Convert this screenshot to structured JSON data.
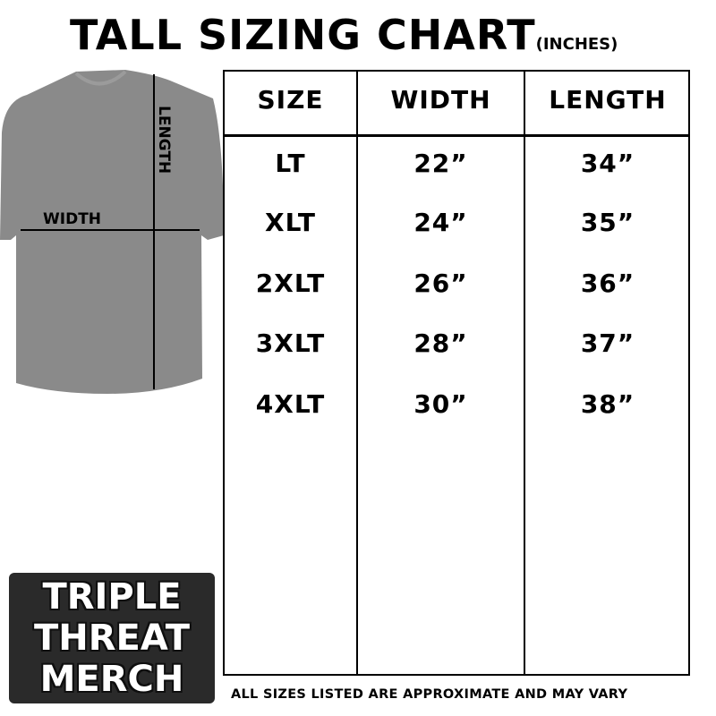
{
  "title": "TALL SIZING CHART",
  "title_unit": "(INCHES)",
  "diagram": {
    "length_label": "LENGTH",
    "width_label": "WIDTH",
    "shirt_color": "#8a8a8a"
  },
  "table": {
    "headers": [
      "SIZE",
      "WIDTH",
      "LENGTH"
    ],
    "rows": [
      [
        "LT",
        "22”",
        "34”"
      ],
      [
        "XLT",
        "24”",
        "35”"
      ],
      [
        "2XLT",
        "26”",
        "36”"
      ],
      [
        "3XLT",
        "28”",
        "37”"
      ],
      [
        "4XLT",
        "30”",
        "38”"
      ]
    ]
  },
  "logo": [
    "TRIPLE",
    "THREAT",
    "MERCH"
  ],
  "footer": "ALL SIZES LISTED ARE APPROXIMATE AND MAY VARY"
}
